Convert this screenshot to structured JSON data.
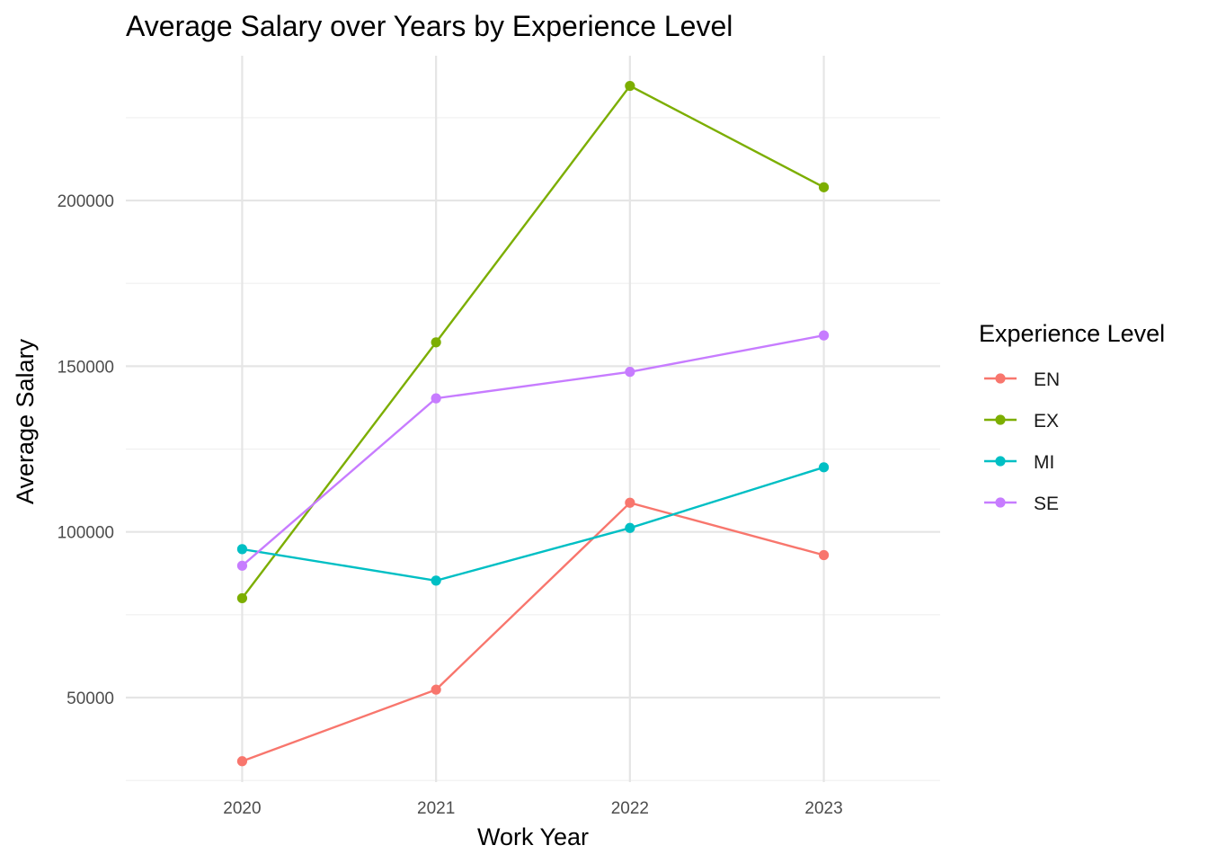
{
  "chart_data": {
    "type": "line",
    "title": "Average Salary over Years by Experience Level",
    "xlabel": "Work Year",
    "ylabel": "Average Salary",
    "x": [
      2020,
      2021,
      2022,
      2023
    ],
    "x_tick_labels": [
      "2020",
      "2021",
      "2022",
      "2023"
    ],
    "y_ticks": [
      50000,
      100000,
      150000,
      200000
    ],
    "y_tick_labels": [
      "50000",
      "100000",
      "150000",
      "200000"
    ],
    "xlim": [
      2019.4,
      2023.6
    ],
    "ylim": [
      24500,
      243700
    ],
    "grid": true,
    "legend": {
      "title": "Experience Level",
      "position": "right"
    },
    "series": [
      {
        "name": "EN",
        "color": "#F8766D",
        "values": [
          30800,
          52400,
          108800,
          93000
        ]
      },
      {
        "name": "EX",
        "color": "#7CAE00",
        "values": [
          80000,
          157200,
          234600,
          204000
        ]
      },
      {
        "name": "MI",
        "color": "#00BFC4",
        "values": [
          94800,
          85300,
          101200,
          119500
        ]
      },
      {
        "name": "SE",
        "color": "#C77CFF",
        "values": [
          89800,
          140300,
          148300,
          159300
        ]
      }
    ]
  }
}
